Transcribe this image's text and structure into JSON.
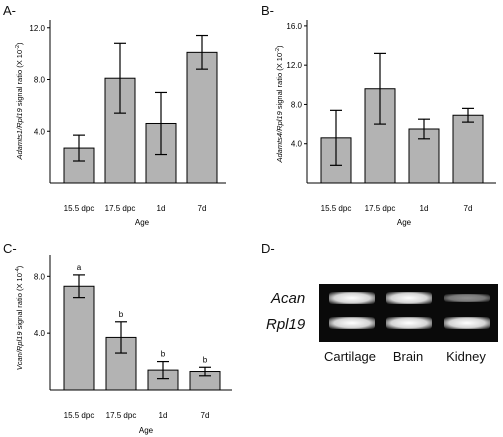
{
  "panel_labels": {
    "A": "A-",
    "B": "B-",
    "C": "C-",
    "D": "D-"
  },
  "chart_data": [
    {
      "id": "A",
      "type": "bar",
      "categories": [
        "15.5 dpc",
        "17.5 dpc",
        "1d",
        "7d"
      ],
      "values": [
        2.7,
        8.1,
        4.6,
        10.1
      ],
      "errors": [
        1.0,
        2.7,
        2.4,
        1.3
      ],
      "ylabel_gene": "Adamts1/Rpl19",
      "ylabel_rest": " signal ratio (X 10",
      "ylabel_exp": "-2",
      "ylabel_close": ")",
      "xlabel": "Age",
      "ylim": [
        0,
        12.6
      ],
      "yticks": [
        "4.0",
        "8.0",
        "12.0"
      ],
      "ytick_values": [
        4,
        8,
        12
      ],
      "bar_color": "#b3b3b3",
      "significance": []
    },
    {
      "id": "B",
      "type": "bar",
      "categories": [
        "15.5 dpc",
        "17.5 dpc",
        "1d",
        "7d"
      ],
      "values": [
        4.6,
        9.6,
        5.5,
        6.9
      ],
      "errors": [
        2.8,
        3.6,
        1.0,
        0.7
      ],
      "ylabel_gene": "Adamts4/Rpl19",
      "ylabel_rest": " signal ratio (X 10",
      "ylabel_exp": "-2",
      "ylabel_close": ")",
      "xlabel": "Age",
      "ylim": [
        0,
        16.6
      ],
      "yticks": [
        "4.0",
        "8.0",
        "12.0",
        "16.0"
      ],
      "ytick_values": [
        4,
        8,
        12,
        16
      ],
      "bar_color": "#b3b3b3",
      "significance": []
    },
    {
      "id": "C",
      "type": "bar",
      "categories": [
        "15.5 dpc",
        "17.5 dpc",
        "1d",
        "7d"
      ],
      "values": [
        7.3,
        3.7,
        1.4,
        1.3
      ],
      "errors": [
        0.8,
        1.1,
        0.6,
        0.3
      ],
      "ylabel_gene": "Vcan/Rpl19",
      "ylabel_rest": " signal ratio (X 10",
      "ylabel_exp": "-4",
      "ylabel_close": ")",
      "xlabel": "Age",
      "ylim": [
        0,
        9.5
      ],
      "yticks": [
        "4.0",
        "8.0"
      ],
      "ytick_values": [
        4,
        8
      ],
      "bar_color": "#b3b3b3",
      "significance": [
        "a",
        "b",
        "b",
        "b"
      ]
    }
  ],
  "gel": {
    "panel": "D-",
    "rows": [
      "Acan",
      "Rpl19"
    ],
    "lanes": [
      "Cartilage",
      "Brain",
      "Kidney"
    ],
    "intensity": [
      [
        1.0,
        1.0,
        0.55
      ],
      [
        1.0,
        1.0,
        1.0
      ]
    ]
  }
}
